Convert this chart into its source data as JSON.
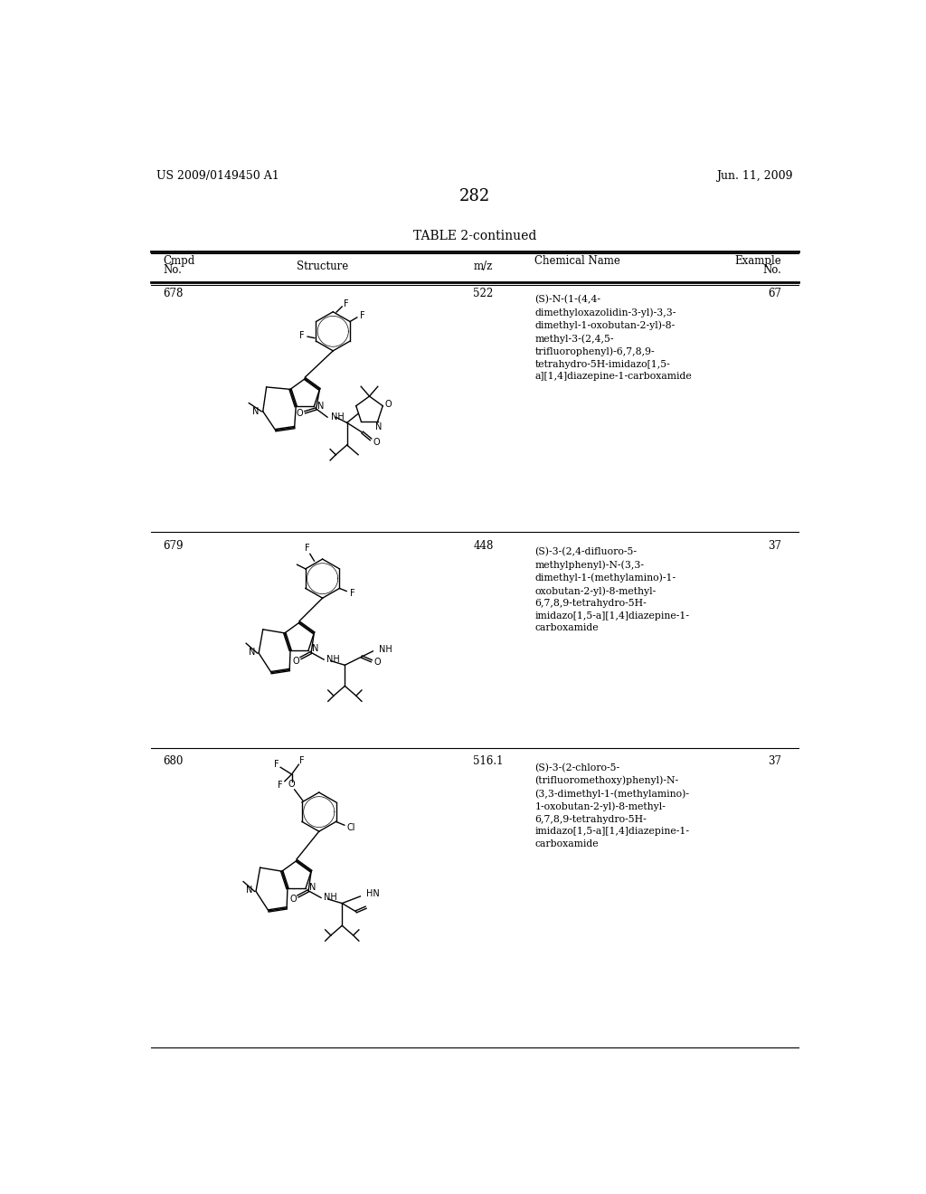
{
  "page_number": "282",
  "left_header": "US 2009/0149450 A1",
  "right_header": "Jun. 11, 2009",
  "table_title": "TABLE 2-continued",
  "rows": [
    {
      "cmpd": "678",
      "mz": "522",
      "chemical_name": "(S)-N-(1-(4,4-\ndimethyloxazolidin-3-yl)-3,3-\ndimethyl-1-oxobutan-2-yl)-8-\nmethyl-3-(2,4,5-\ntrifluorophenyl)-6,7,8,9-\ntetrahydro-5H-imidazo[1,5-\na][1,4]diazepine-1-carboxamide",
      "example": "67"
    },
    {
      "cmpd": "679",
      "mz": "448",
      "chemical_name": "(S)-3-(2,4-difluoro-5-\nmethylphenyl)-N-(3,3-\ndimethyl-1-(methylamino)-1-\noxobutan-2-yl)-8-methyl-\n6,7,8,9-tetrahydro-5H-\nimidazo[1,5-a][1,4]diazepine-1-\ncarboxamide",
      "example": "37"
    },
    {
      "cmpd": "680",
      "mz": "516.1",
      "chemical_name": "(S)-3-(2-chloro-5-\n(trifluoromethoxy)phenyl)-N-\n(3,3-dimethyl-1-(methylamino)-\n1-oxobutan-2-yl)-8-methyl-\n6,7,8,9-tetrahydro-5H-\nimidazo[1,5-a][1,4]diazepine-1-\ncarboxamide",
      "example": "37"
    }
  ],
  "background_color": "#ffffff",
  "text_color": "#000000"
}
